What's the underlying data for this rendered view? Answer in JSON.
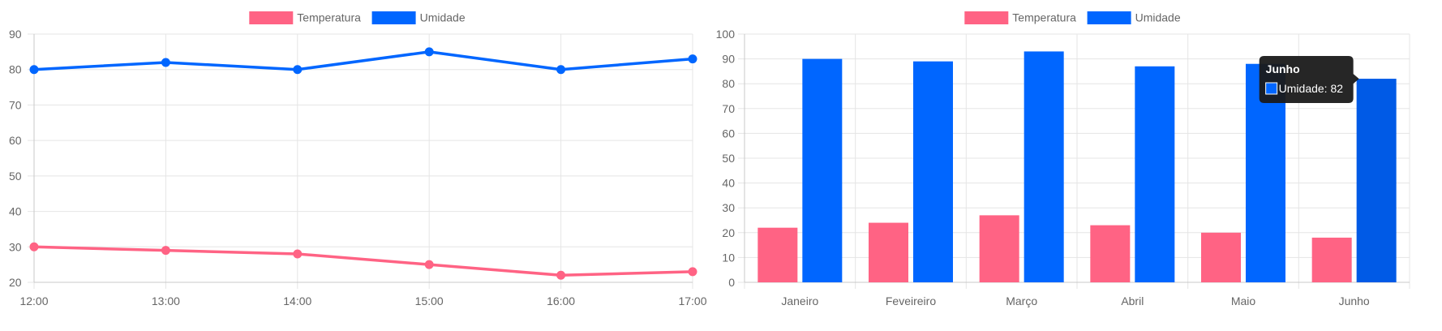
{
  "colors": {
    "temperatura": "#ff6384",
    "umidade": "#0066ff",
    "umidade_hover": "#005ae6",
    "grid": "#e5e5e5",
    "axis": "#c8c8c8",
    "text": "#666666",
    "tooltip_bg": "#1a1a1a",
    "tooltip_text": "#ffffff"
  },
  "chart_data": [
    {
      "type": "line",
      "legend": [
        "Temperatura",
        "Umidade"
      ],
      "legend_position": "top-center",
      "categories": [
        "12:00",
        "13:00",
        "14:00",
        "15:00",
        "16:00",
        "17:00"
      ],
      "series": [
        {
          "name": "Temperatura",
          "values": [
            30,
            29,
            28,
            25,
            22,
            23
          ]
        },
        {
          "name": "Umidade",
          "values": [
            80,
            82,
            80,
            85,
            80,
            83
          ]
        }
      ],
      "ylim": [
        20,
        90
      ],
      "yticks": [
        20,
        30,
        40,
        50,
        60,
        70,
        80,
        90
      ],
      "grid": true
    },
    {
      "type": "bar",
      "legend": [
        "Temperatura",
        "Umidade"
      ],
      "legend_position": "top-center",
      "categories": [
        "Janeiro",
        "Feveireiro",
        "Março",
        "Abril",
        "Maio",
        "Junho"
      ],
      "series": [
        {
          "name": "Temperatura",
          "values": [
            22,
            24,
            27,
            23,
            20,
            18
          ]
        },
        {
          "name": "Umidade",
          "values": [
            90,
            89,
            93,
            87,
            88,
            82
          ]
        }
      ],
      "ylim": [
        0,
        100
      ],
      "yticks": [
        0,
        10,
        20,
        30,
        40,
        50,
        60,
        70,
        80,
        90,
        100
      ],
      "grid": true,
      "tooltip": {
        "title": "Junho",
        "label": "Umidade: 82",
        "category_index": 5,
        "series_index": 1
      }
    }
  ]
}
